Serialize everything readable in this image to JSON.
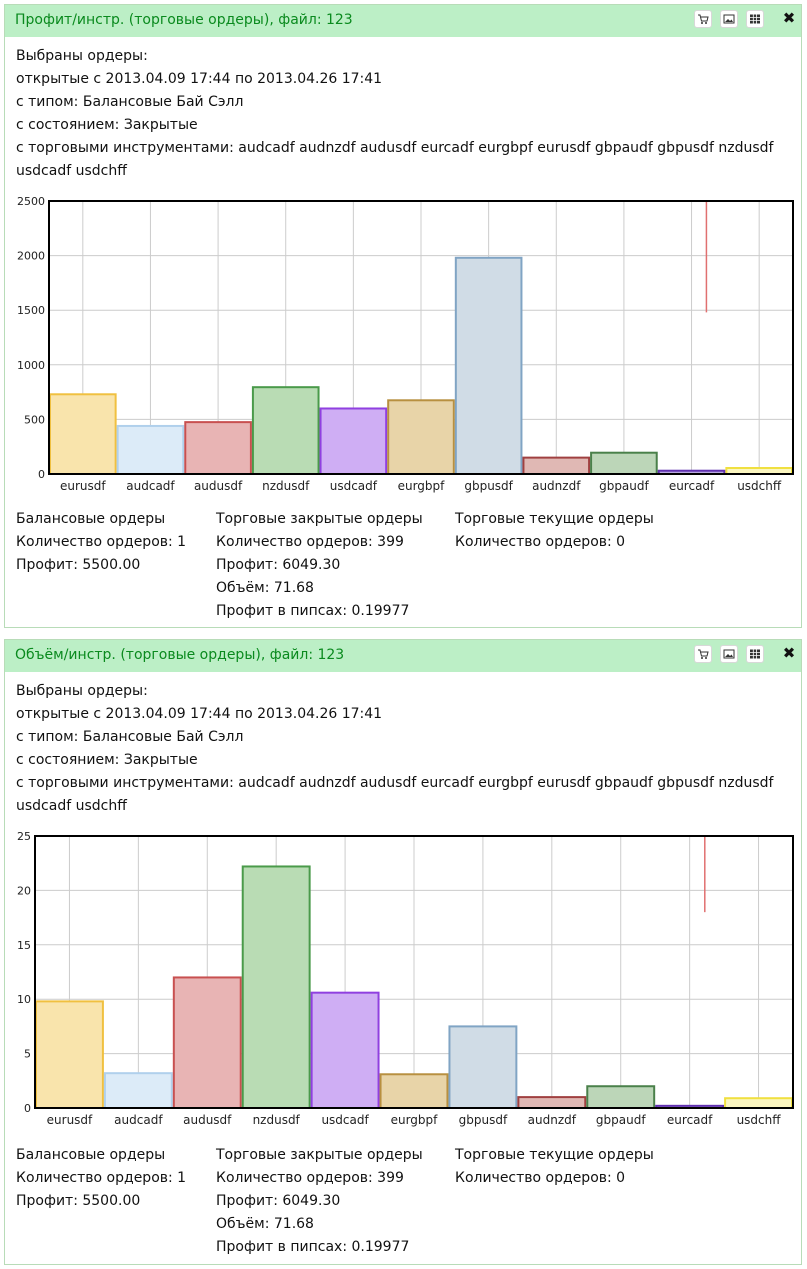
{
  "panels": [
    {
      "title": "Профит/инстр. (торговые ордеры), файл: 123",
      "close_label": "✖",
      "desc": {
        "line1": "Выбраны ордеры:",
        "line2": "открытые с 2013.04.09 17:44 по 2013.04.26 17:41",
        "line3": "с типом: Балансовые Бай Сэлл",
        "line4": "с состоянием: Закрытые",
        "line5": "с торговыми инструментами: audcadf audnzdf audusdf eurcadf eurgbpf eurusdf gbpaudf gbpusdf nzdusdf usdcadf usdchff"
      },
      "stats": {
        "balance_title": "Балансовые ордеры",
        "balance_count": "Количество ордеров: 1",
        "balance_profit": "Профит: 5500.00",
        "closed_title": "Торговые закрытые ордеры",
        "closed_count": "Количество ордеров: 399",
        "closed_profit": "Профит: 6049.30",
        "closed_volume": "Объём: 71.68",
        "closed_pips": "Профит в пипсах: 0.19977",
        "current_title": "Торговые текущие ордеры",
        "current_count": "Количество ордеров: 0"
      }
    },
    {
      "title": "Объём/инстр. (торговые ордеры), файл: 123",
      "close_label": "✖",
      "desc": {
        "line1": "Выбраны ордеры:",
        "line2": "открытые с 2013.04.09 17:44 по 2013.04.26 17:41",
        "line3": "с типом: Балансовые Бай Сэлл",
        "line4": "с состоянием: Закрытые",
        "line5": "с торговыми инструментами: audcadf audnzdf audusdf eurcadf eurgbpf eurusdf gbpaudf gbpusdf nzdusdf usdcadf usdchff"
      },
      "stats": {
        "balance_title": "Балансовые ордеры",
        "balance_count": "Количество ордеров: 1",
        "balance_profit": "Профит: 5500.00",
        "closed_title": "Торговые закрытые ордеры",
        "closed_count": "Количество ордеров: 399",
        "closed_profit": "Профит: 6049.30",
        "closed_volume": "Объём: 71.68",
        "closed_pips": "Профит в пипсах: 0.19977",
        "current_title": "Торговые текущие ордеры",
        "current_count": "Количество ордеров: 0"
      }
    }
  ],
  "toolbar_icons": [
    "cart-icon",
    "image-icon",
    "grid-icon"
  ],
  "colors": {
    "title_bg": "#bcefc6",
    "title_text": "#0a8a1e",
    "marker": "#e07070"
  },
  "chart_data": [
    {
      "type": "bar",
      "categories": [
        "eurusdf",
        "audcadf",
        "audusdf",
        "nzdusdf",
        "usdcadf",
        "eurgbpf",
        "gbpusdf",
        "audnzdf",
        "gbpaudf",
        "eurcadf",
        "usdchff"
      ],
      "values": [
        730,
        440,
        475,
        795,
        600,
        675,
        1980,
        150,
        195,
        30,
        55
      ],
      "ylim": [
        0,
        2500
      ],
      "yticks": [
        0,
        500,
        1000,
        1500,
        2000,
        2500
      ],
      "grid": true,
      "fills": [
        "#f9e4ac",
        "#dcebf8",
        "#e8b4b4",
        "#b9dcb4",
        "#cfaef4",
        "#e8d4a8",
        "#d0dce6",
        "#e0b8b4",
        "#bcd6b8",
        "#b8a8e0",
        "#fbf6c0"
      ],
      "strokes": [
        "#f0c040",
        "#b0d0ec",
        "#c85050",
        "#4a9a4a",
        "#9040e0",
        "#b89040",
        "#80a4c4",
        "#a04040",
        "#4a804a",
        "#6030b0",
        "#f0e040"
      ],
      "marker_value_range": [
        1480,
        2500
      ]
    },
    {
      "type": "bar",
      "categories": [
        "eurusdf",
        "audcadf",
        "audusdf",
        "nzdusdf",
        "usdcadf",
        "eurgbpf",
        "gbpusdf",
        "audnzdf",
        "gbpaudf",
        "eurcadf",
        "usdchff"
      ],
      "values": [
        9.8,
        3.2,
        12,
        22.2,
        10.6,
        3.1,
        7.5,
        1.0,
        2.0,
        0.2,
        0.9
      ],
      "ylim": [
        0,
        25
      ],
      "yticks": [
        0,
        5,
        10,
        15,
        20,
        25
      ],
      "grid": true,
      "fills": [
        "#f9e4ac",
        "#dcebf8",
        "#e8b4b4",
        "#b9dcb4",
        "#cfaef4",
        "#e8d4a8",
        "#d0dce6",
        "#e0b8b4",
        "#bcd6b8",
        "#b8a8e0",
        "#fbf6c0"
      ],
      "strokes": [
        "#f0c040",
        "#b0d0ec",
        "#c85050",
        "#4a9a4a",
        "#9040e0",
        "#b89040",
        "#80a4c4",
        "#a04040",
        "#4a804a",
        "#6030b0",
        "#f0e040"
      ],
      "marker_value_range": [
        18,
        25
      ]
    }
  ]
}
